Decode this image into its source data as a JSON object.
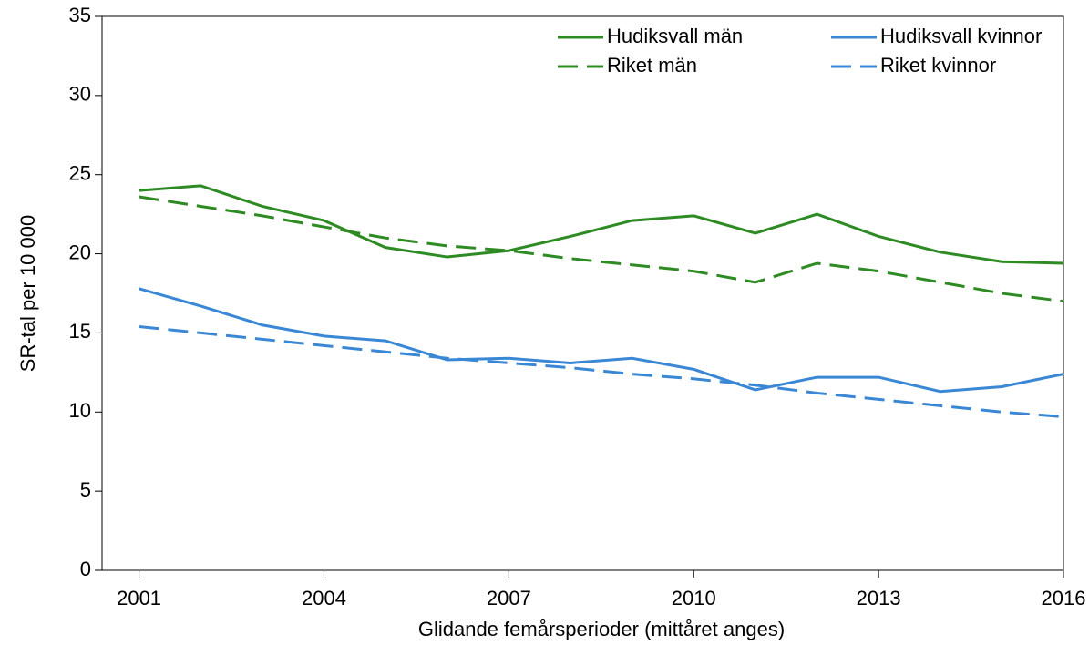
{
  "chart_data": {
    "type": "line",
    "x_label": "Glidande femårsperioder (mittåret anges)",
    "y_label": "SR-tal per 10 000",
    "x": [
      2001,
      2002,
      2003,
      2004,
      2005,
      2006,
      2007,
      2008,
      2009,
      2010,
      2011,
      2012,
      2013,
      2014,
      2015,
      2016
    ],
    "xlim": [
      2000.4,
      2016
    ],
    "xticks": [
      2001,
      2004,
      2007,
      2010,
      2013,
      2016
    ],
    "ylim": [
      0,
      35
    ],
    "yticks": [
      0,
      5,
      10,
      15,
      20,
      25,
      30,
      35
    ],
    "legend": "top-right",
    "series": [
      {
        "name": "Hudiksvall män",
        "color": "#2e8b23",
        "dashed": false,
        "values": [
          24.0,
          24.3,
          23.0,
          22.1,
          20.4,
          19.8,
          20.2,
          21.1,
          22.1,
          22.4,
          21.3,
          22.5,
          21.1,
          20.1,
          19.5,
          19.4
        ]
      },
      {
        "name": "Hudiksvall kvinnor",
        "color": "#3a87d6",
        "dashed": false,
        "values": [
          17.8,
          16.7,
          15.5,
          14.8,
          14.5,
          13.3,
          13.4,
          13.1,
          13.4,
          12.7,
          11.4,
          12.2,
          12.2,
          11.3,
          11.6,
          12.4
        ]
      },
      {
        "name": "Riket män",
        "color": "#2e8b23",
        "dashed": true,
        "values": [
          23.6,
          23.0,
          22.4,
          21.7,
          21.0,
          20.5,
          20.2,
          19.7,
          19.3,
          18.9,
          18.2,
          19.4,
          18.9,
          18.2,
          17.5,
          17.0
        ]
      },
      {
        "name": "Riket kvinnor",
        "color": "#3a87d6",
        "dashed": true,
        "values": [
          15.4,
          15.0,
          14.6,
          14.2,
          13.8,
          13.4,
          13.1,
          12.8,
          12.4,
          12.1,
          11.7,
          11.2,
          10.8,
          10.4,
          10.0,
          9.7
        ]
      }
    ]
  }
}
